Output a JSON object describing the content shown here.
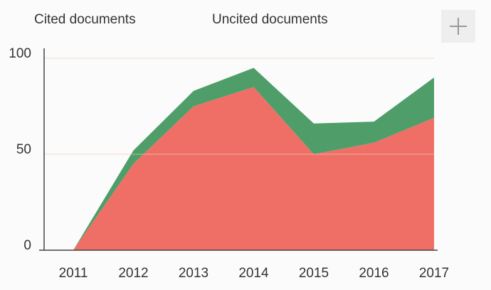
{
  "chart_data": {
    "type": "stacked_area",
    "categories": [
      "2011",
      "2012",
      "2013",
      "2014",
      "2015",
      "2016",
      "2017"
    ],
    "series": [
      {
        "name": "Cited documents",
        "color": "#ef6f66",
        "values": [
          0,
          45,
          75,
          85,
          50,
          56,
          69
        ]
      },
      {
        "name": "Uncited documents",
        "color": "#4f9e6a",
        "values": [
          0,
          7,
          8,
          10,
          16,
          11,
          21
        ]
      }
    ],
    "ylim": [
      0,
      100
    ],
    "yticks": [
      0,
      50,
      100
    ],
    "grid": true
  }
}
